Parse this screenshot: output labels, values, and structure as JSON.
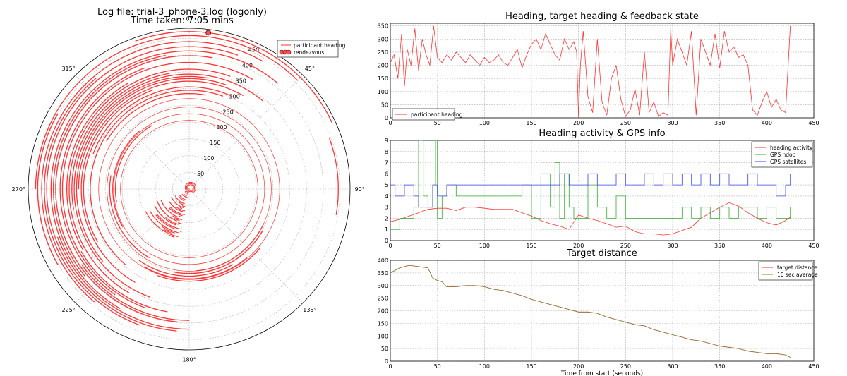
{
  "page": {
    "title_line1": "Log file: trial-3_phone-3.log (logonly)",
    "title_line2": "Time taken: 7:05 mins"
  },
  "colors": {
    "heading": "#ff3333",
    "hdop": "#33aa33",
    "satellites": "#3344ee",
    "avg": "#8a7a3a"
  },
  "chart_data": [
    {
      "id": "polar",
      "type": "scatter",
      "title": "",
      "angle_labels": [
        "0°",
        "45°",
        "90°",
        "135°",
        "180°",
        "225°",
        "270°",
        "315°"
      ],
      "radius_labels": [
        "50",
        "100",
        "150",
        "200",
        "250",
        "300",
        "350",
        "400",
        "450"
      ],
      "rmax": 480,
      "legend": [
        "participant heading",
        "rendezvous"
      ],
      "legend_position": "top-right",
      "rendezvous": {
        "angle": 7,
        "radius": 470
      },
      "arcs": [
        {
          "r": 470,
          "a0": -20,
          "a1": 65
        },
        {
          "r": 458,
          "a0": -90,
          "a1": 45
        },
        {
          "r": 452,
          "a0": -120,
          "a1": -60
        },
        {
          "r": 445,
          "a0": 100,
          "a1": 70
        },
        {
          "r": 440,
          "a0": -140,
          "a1": 30
        },
        {
          "r": 432,
          "a0": -160,
          "a1": -40
        },
        {
          "r": 425,
          "a0": -175,
          "a1": 20
        },
        {
          "r": 418,
          "a0": 180,
          "a1": 250
        },
        {
          "r": 412,
          "a0": -150,
          "a1": 40
        },
        {
          "r": 405,
          "a0": -130,
          "a1": -10
        },
        {
          "r": 398,
          "a0": -175,
          "a1": 10
        },
        {
          "r": 392,
          "a0": 180,
          "a1": 235
        },
        {
          "r": 385,
          "a0": -145,
          "a1": -20
        },
        {
          "r": 378,
          "a0": -160,
          "a1": 30
        },
        {
          "r": 372,
          "a0": 190,
          "a1": 240
        },
        {
          "r": 365,
          "a0": -120,
          "a1": -30
        },
        {
          "r": 358,
          "a0": -150,
          "a1": 20
        },
        {
          "r": 350,
          "a0": -100,
          "a1": -10
        },
        {
          "r": 343,
          "a0": -160,
          "a1": 40
        },
        {
          "r": 336,
          "a0": -130,
          "a1": 10
        },
        {
          "r": 330,
          "a0": -90,
          "a1": 20
        },
        {
          "r": 322,
          "a0": -150,
          "a1": 30
        },
        {
          "r": 315,
          "a0": -120,
          "a1": -20
        },
        {
          "r": 305,
          "a0": -70,
          "a1": 25
        },
        {
          "r": 295,
          "a0": -140,
          "a1": 20
        },
        {
          "r": 285,
          "a0": -60,
          "a1": 10
        },
        {
          "r": 275,
          "a0": 130,
          "a1": 200
        },
        {
          "r": 268,
          "a0": 140,
          "a1": 210
        },
        {
          "r": 260,
          "a0": 150,
          "a1": 215
        },
        {
          "r": 252,
          "a0": 120,
          "a1": 190
        },
        {
          "r": 245,
          "a0": 115,
          "a1": 175
        },
        {
          "r": 237,
          "a0": -150,
          "a1": -80
        },
        {
          "r": 228,
          "a0": -120,
          "a1": -40
        },
        {
          "r": 220,
          "a0": -100,
          "a1": -30
        }
      ],
      "fan": {
        "a0": 190,
        "a1": 240,
        "r0": 10,
        "r1": 150,
        "step": 4
      },
      "rings": [
        270,
        245,
        225,
        205
      ],
      "small_loops": [
        16,
        12,
        9
      ]
    },
    {
      "id": "heading",
      "type": "line",
      "title": "Heading, target heading & feedback state",
      "xlim": [
        0,
        450
      ],
      "ylim": [
        0,
        360
      ],
      "xticks": [
        "0",
        "50",
        "100",
        "150",
        "200",
        "250",
        "300",
        "350",
        "400",
        "450"
      ],
      "yticks": [
        "0",
        "50",
        "100",
        "150",
        "200",
        "250",
        "300",
        "350"
      ],
      "legend": [
        "participant heading"
      ],
      "legend_position": "lower-left",
      "series": [
        {
          "name": "participant heading",
          "x": [
            0,
            4,
            8,
            12,
            15,
            18,
            22,
            26,
            30,
            34,
            38,
            42,
            46,
            50,
            55,
            60,
            65,
            70,
            75,
            80,
            85,
            90,
            95,
            100,
            105,
            110,
            115,
            120,
            125,
            130,
            135,
            140,
            145,
            150,
            155,
            160,
            165,
            170,
            175,
            180,
            185,
            190,
            195,
            198,
            200,
            202,
            205,
            210,
            215,
            220,
            225,
            230,
            235,
            240,
            245,
            250,
            255,
            260,
            265,
            270,
            275,
            280,
            285,
            290,
            295,
            298,
            300,
            305,
            310,
            315,
            320,
            325,
            330,
            335,
            340,
            345,
            350,
            355,
            360,
            365,
            370,
            375,
            380,
            385,
            390,
            395,
            400,
            405,
            410,
            415,
            420,
            425
          ],
          "y": [
            210,
            240,
            150,
            320,
            120,
            260,
            200,
            340,
            180,
            300,
            240,
            200,
            350,
            230,
            210,
            240,
            220,
            250,
            230,
            210,
            240,
            220,
            200,
            230,
            210,
            220,
            240,
            210,
            200,
            230,
            260,
            190,
            240,
            280,
            300,
            260,
            320,
            280,
            240,
            220,
            300,
            260,
            290,
            250,
            0,
            200,
            330,
            80,
            20,
            300,
            60,
            10,
            150,
            200,
            70,
            5,
            30,
            110,
            10,
            250,
            20,
            60,
            5,
            20,
            10,
            340,
            200,
            300,
            250,
            200,
            330,
            10,
            300,
            250,
            200,
            320,
            190,
            330,
            250,
            270,
            230,
            240,
            200,
            30,
            10,
            60,
            100,
            40,
            70,
            30,
            20,
            350
          ]
        }
      ]
    },
    {
      "id": "activity",
      "type": "line",
      "title": "Heading activity & GPS info",
      "xlim": [
        0,
        450
      ],
      "ylim": [
        0,
        9
      ],
      "xticks": [
        "0",
        "50",
        "100",
        "150",
        "200",
        "250",
        "300",
        "350",
        "400",
        "450"
      ],
      "yticks": [
        "0",
        "1",
        "2",
        "3",
        "4",
        "5",
        "6",
        "7",
        "8",
        "9"
      ],
      "legend": [
        "heading activity",
        "GPS hdop",
        "GPS satellites"
      ],
      "legend_position": "top-right",
      "series": [
        {
          "name": "heading activity",
          "x": [
            0,
            10,
            20,
            30,
            40,
            50,
            60,
            70,
            80,
            90,
            100,
            110,
            120,
            130,
            140,
            150,
            160,
            170,
            180,
            190,
            200,
            210,
            220,
            230,
            240,
            250,
            260,
            270,
            280,
            290,
            300,
            310,
            320,
            330,
            340,
            350,
            360,
            370,
            380,
            390,
            400,
            410,
            420,
            425
          ],
          "y": [
            1.7,
            1.9,
            2.2,
            2.5,
            2.8,
            2.9,
            2.9,
            2.7,
            3.0,
            3.0,
            2.9,
            2.8,
            2.8,
            2.8,
            2.5,
            2.2,
            1.8,
            1.5,
            1.3,
            1.0,
            2.3,
            2.0,
            1.8,
            1.5,
            1.2,
            1.3,
            0.8,
            0.6,
            0.6,
            0.5,
            0.6,
            0.9,
            1.2,
            2.0,
            2.5,
            3.0,
            3.4,
            3.1,
            2.5,
            2.0,
            1.6,
            1.4,
            1.8,
            2.1
          ]
        },
        {
          "name": "GPS hdop",
          "x": [
            0,
            10,
            20,
            25,
            30,
            35,
            40,
            45,
            48,
            50,
            55,
            60,
            70,
            80,
            90,
            100,
            110,
            120,
            130,
            140,
            150,
            160,
            170,
            175,
            180,
            185,
            190,
            195,
            200,
            210,
            220,
            230,
            240,
            250,
            260,
            270,
            280,
            290,
            300,
            310,
            320,
            330,
            340,
            350,
            360,
            370,
            380,
            390,
            400,
            410,
            420,
            425
          ],
          "y": [
            1,
            2,
            2,
            3,
            9,
            4,
            3,
            5,
            9,
            2,
            4,
            5,
            4,
            4,
            4,
            4,
            4,
            4,
            4,
            5,
            2,
            6,
            3,
            7,
            2,
            6,
            3,
            2,
            2,
            5,
            3,
            2,
            4,
            2,
            2,
            2,
            2,
            2,
            2,
            3,
            2,
            3,
            2,
            3,
            2,
            3,
            3,
            2,
            3,
            2,
            2,
            3
          ]
        },
        {
          "name": "GPS satellites",
          "x": [
            0,
            5,
            10,
            15,
            20,
            25,
            30,
            35,
            40,
            45,
            50,
            55,
            60,
            70,
            80,
            90,
            100,
            110,
            120,
            130,
            140,
            150,
            160,
            170,
            180,
            190,
            200,
            210,
            220,
            230,
            240,
            250,
            260,
            270,
            280,
            290,
            300,
            310,
            320,
            330,
            340,
            350,
            360,
            370,
            380,
            390,
            400,
            410,
            420,
            425
          ],
          "y": [
            5,
            4,
            4,
            5,
            5,
            4,
            3,
            3,
            3,
            5,
            4,
            4,
            5,
            5,
            5,
            5,
            5,
            5,
            5,
            5,
            5,
            5,
            5,
            5,
            6,
            5,
            5,
            6,
            5,
            5,
            6,
            5,
            5,
            6,
            5,
            6,
            5,
            6,
            5,
            6,
            5,
            6,
            5,
            5,
            6,
            5,
            5,
            4,
            5,
            6
          ]
        }
      ]
    },
    {
      "id": "distance",
      "type": "line",
      "title": "Target distance",
      "xlabel": "Time from start (seconds)",
      "xlim": [
        0,
        450
      ],
      "ylim": [
        0,
        400
      ],
      "xticks": [
        "0",
        "50",
        "100",
        "150",
        "200",
        "250",
        "300",
        "350",
        "400",
        "450"
      ],
      "yticks": [
        "0",
        "50",
        "100",
        "150",
        "200",
        "250",
        "300",
        "350",
        "400"
      ],
      "legend": [
        "target distance",
        "10 sec average"
      ],
      "legend_position": "top-right",
      "series": [
        {
          "name": "target distance",
          "x": [
            0,
            10,
            20,
            30,
            40,
            45,
            50,
            55,
            60,
            70,
            80,
            90,
            100,
            110,
            120,
            130,
            140,
            150,
            160,
            170,
            180,
            190,
            200,
            210,
            220,
            230,
            240,
            250,
            260,
            270,
            280,
            290,
            300,
            310,
            320,
            330,
            340,
            350,
            360,
            370,
            380,
            390,
            400,
            410,
            420,
            425
          ],
          "y": [
            350,
            370,
            380,
            375,
            370,
            330,
            320,
            315,
            295,
            295,
            300,
            300,
            295,
            285,
            280,
            270,
            260,
            245,
            235,
            225,
            215,
            205,
            195,
            195,
            190,
            175,
            165,
            155,
            145,
            140,
            125,
            115,
            105,
            95,
            85,
            80,
            70,
            60,
            55,
            50,
            40,
            35,
            30,
            30,
            25,
            15
          ]
        },
        {
          "name": "10 sec average",
          "x": [
            0,
            10,
            20,
            30,
            40,
            45,
            50,
            55,
            60,
            70,
            80,
            90,
            100,
            110,
            120,
            130,
            140,
            150,
            160,
            170,
            180,
            190,
            200,
            210,
            220,
            230,
            240,
            250,
            260,
            270,
            280,
            290,
            300,
            310,
            320,
            330,
            340,
            350,
            360,
            370,
            380,
            390,
            400,
            410,
            420,
            425
          ],
          "y": [
            350,
            370,
            380,
            375,
            370,
            330,
            320,
            315,
            295,
            295,
            300,
            300,
            295,
            285,
            280,
            270,
            260,
            245,
            235,
            225,
            215,
            205,
            195,
            195,
            190,
            175,
            165,
            155,
            145,
            140,
            125,
            115,
            105,
            95,
            85,
            80,
            70,
            60,
            55,
            50,
            40,
            35,
            30,
            30,
            25,
            15
          ]
        }
      ]
    }
  ]
}
